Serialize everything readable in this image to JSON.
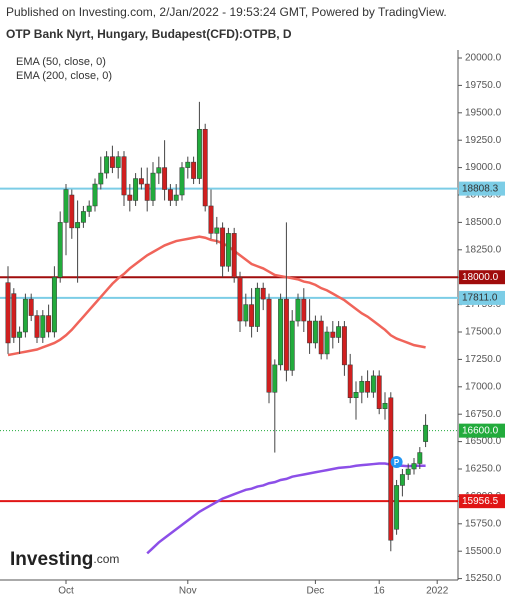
{
  "chart_data": {
    "type": "candlestick",
    "header": "Published on Investing.com, 2/Jan/2022 - 19:53:24 GMT, Powered by TradingView.",
    "title": "OTP Bank Nyrt, Hungary, Budapest(CFD):OTPB, D",
    "logo": "Investing",
    "logo_suffix": ".com",
    "marker_label": "P",
    "marker_index": 67,
    "up_color": "#22ab3c",
    "down_color": "#d11f1f",
    "categories": [
      null,
      null,
      null,
      null,
      null,
      null,
      null,
      null,
      null,
      null,
      null,
      null,
      null,
      null,
      null,
      null,
      null,
      null,
      null,
      null,
      null,
      null,
      null,
      null,
      null,
      null,
      null,
      null,
      null,
      null,
      null,
      null,
      null,
      null,
      null,
      null,
      null,
      null,
      null,
      null,
      null,
      null,
      null,
      null,
      null,
      null,
      null,
      null,
      null,
      null,
      null,
      null,
      null,
      null,
      null,
      null,
      null,
      null,
      null,
      null,
      null,
      null,
      null,
      null,
      null,
      null,
      null,
      null,
      null,
      null,
      null,
      null,
      null
    ],
    "open": [
      17950,
      17850,
      17450,
      17500,
      17800,
      17650,
      17450,
      17650,
      17500,
      18000,
      18500,
      18750,
      18450,
      18500,
      18600,
      18650,
      18850,
      18950,
      19100,
      19000,
      19100,
      18750,
      18700,
      18900,
      18850,
      18700,
      18950,
      19000,
      18800,
      18700,
      18750,
      19000,
      19050,
      18900,
      19350,
      18650,
      18400,
      18450,
      18100,
      18400,
      18000,
      17600,
      17750,
      17550,
      17900,
      17800,
      16950,
      17200,
      17800,
      17150,
      17600,
      17800,
      17600,
      17400,
      17600,
      17300,
      17500,
      17450,
      17550,
      17200,
      16900,
      16950,
      17050,
      16950,
      17100,
      16800,
      16900,
      15700,
      16100,
      16200,
      16250,
      16300,
      16500
    ],
    "high": [
      18100,
      17900,
      17550,
      17850,
      17850,
      17700,
      17700,
      17750,
      18100,
      18600,
      18850,
      18800,
      18700,
      18650,
      18700,
      18900,
      19100,
      19150,
      19200,
      19150,
      19150,
      18850,
      18950,
      19000,
      19000,
      19050,
      19100,
      19250,
      18850,
      18850,
      19050,
      19100,
      19100,
      19600,
      19400,
      18800,
      18550,
      18500,
      18450,
      18450,
      18050,
      17850,
      17900,
      17950,
      17950,
      17850,
      17250,
      17850,
      18500,
      17700,
      17850,
      17900,
      17800,
      17650,
      17650,
      17550,
      17600,
      17600,
      17600,
      17300,
      17050,
      17100,
      17150,
      17150,
      17150,
      16950,
      16950,
      16150,
      16250,
      16300,
      16350,
      16450,
      16750
    ],
    "low": [
      17300,
      17400,
      17300,
      17450,
      17600,
      17400,
      17400,
      17450,
      17450,
      17950,
      18200,
      18350,
      17950,
      18450,
      18550,
      18600,
      18800,
      18900,
      18950,
      18900,
      18650,
      18600,
      18650,
      18800,
      18600,
      18650,
      18850,
      18700,
      18650,
      18650,
      18700,
      18900,
      18850,
      18850,
      18600,
      18350,
      18300,
      18000,
      18050,
      17950,
      17500,
      17550,
      17450,
      17500,
      17700,
      16850,
      16400,
      17150,
      17050,
      17100,
      17550,
      17500,
      17300,
      17350,
      17250,
      17250,
      17350,
      17400,
      17100,
      16850,
      16700,
      16850,
      16900,
      16900,
      16750,
      16700,
      15500,
      15650,
      16000,
      16150,
      16200,
      16250,
      16450
    ],
    "close": [
      17400,
      17450,
      17500,
      17800,
      17650,
      17450,
      17650,
      17500,
      18000,
      18500,
      18800,
      18450,
      18500,
      18600,
      18650,
      18850,
      18950,
      19100,
      19000,
      19100,
      18750,
      18700,
      18900,
      18850,
      18700,
      18950,
      19000,
      18800,
      18700,
      18750,
      19000,
      19050,
      18900,
      19350,
      18650,
      18400,
      18450,
      18100,
      18400,
      18000,
      17600,
      17750,
      17550,
      17900,
      17800,
      16950,
      17200,
      17800,
      17150,
      17600,
      17800,
      17600,
      17400,
      17600,
      17300,
      17500,
      17450,
      17550,
      17200,
      16900,
      16950,
      17050,
      16950,
      17100,
      16800,
      16850,
      15600,
      16100,
      16200,
      16250,
      16300,
      16400,
      16650
    ],
    "series": [
      {
        "name": "EMA (50, close, 0)",
        "color": "#f0645a",
        "values": [
          17290,
          17300,
          17310,
          17320,
          17330,
          17340,
          17360,
          17380,
          17400,
          17430,
          17470,
          17520,
          17580,
          17640,
          17700,
          17760,
          17820,
          17880,
          17940,
          17990,
          18030,
          18080,
          18120,
          18160,
          18200,
          18230,
          18260,
          18290,
          18310,
          18330,
          18340,
          18350,
          18360,
          18370,
          18360,
          18340,
          18330,
          18310,
          18280,
          18240,
          18200,
          18160,
          18120,
          18100,
          18080,
          18050,
          18020,
          18010,
          18000,
          17990,
          17980,
          17960,
          17950,
          17930,
          17900,
          17880,
          17850,
          17820,
          17790,
          17750,
          17710,
          17670,
          17640,
          17600,
          17560,
          17520,
          17470,
          17440,
          17420,
          17400,
          17380,
          17370,
          17360
        ]
      },
      {
        "name": "EMA (200, close, 0)",
        "color": "#8c4fe8",
        "values": [
          null,
          null,
          null,
          null,
          null,
          null,
          null,
          null,
          null,
          null,
          null,
          null,
          null,
          null,
          null,
          null,
          null,
          null,
          null,
          null,
          null,
          null,
          null,
          null,
          15480,
          15530,
          15580,
          15620,
          15660,
          15700,
          15740,
          15780,
          15820,
          15860,
          15890,
          15920,
          15950,
          15980,
          16000,
          16020,
          16040,
          16060,
          16070,
          16090,
          16100,
          16120,
          16130,
          16150,
          16160,
          16180,
          16190,
          16200,
          16210,
          16220,
          16230,
          16240,
          16250,
          16260,
          16265,
          16270,
          16280,
          16285,
          16290,
          16295,
          16300,
          16300,
          16290,
          16280,
          16280,
          16275,
          16280,
          16280,
          16280
        ]
      }
    ],
    "levels": [
      {
        "value": 18808.3,
        "label": "18808.3",
        "color": "#7ccde6",
        "text_color": "#333333",
        "style": "solid"
      },
      {
        "value": 18000,
        "label": "18000.0",
        "color": "#a00c0c",
        "text_color": "#ffffff",
        "style": "solid"
      },
      {
        "value": 17811,
        "label": "17811.0",
        "color": "#7ccde6",
        "text_color": "#333333",
        "style": "solid"
      },
      {
        "value": 16600,
        "label": "16600.0",
        "color": "#22ab3c",
        "text_color": "#ffffff",
        "style": "dotted"
      },
      {
        "value": 15956.5,
        "label": "15956.5",
        "color": "#e01515",
        "text_color": "#ffffff",
        "style": "solid"
      }
    ],
    "xticks": [
      {
        "value": 10,
        "label": "Oct"
      },
      {
        "value": 31,
        "label": "Nov"
      },
      {
        "value": 53,
        "label": "Dec"
      },
      {
        "value": 64,
        "label": "16"
      },
      {
        "value": 74,
        "label": "2022"
      }
    ],
    "ylim": [
      15250,
      20000
    ],
    "yticks": [
      {
        "value": 15250,
        "label": "15250.0"
      },
      {
        "value": 15500,
        "label": "15500.0"
      },
      {
        "value": 15750,
        "label": "15750.0"
      },
      {
        "value": 16000,
        "label": "16000.0"
      },
      {
        "value": 16250,
        "label": "16250.0"
      },
      {
        "value": 16500,
        "label": "16500.0"
      },
      {
        "value": 16750,
        "label": "16750.0"
      },
      {
        "value": 17000,
        "label": "17000.0"
      },
      {
        "value": 17250,
        "label": "17250.0"
      },
      {
        "value": 17500,
        "label": "17500.0"
      },
      {
        "value": 17750,
        "label": "17750.0"
      },
      {
        "value": 18000,
        "label": "18000.0"
      },
      {
        "value": 18250,
        "label": "18250.0"
      },
      {
        "value": 18500,
        "label": "18500.0"
      },
      {
        "value": 18750,
        "label": "18750.0"
      },
      {
        "value": 19000,
        "label": "19000.0"
      },
      {
        "value": 19250,
        "label": "19250.0"
      },
      {
        "value": 19500,
        "label": "19500.0"
      },
      {
        "value": 19750,
        "label": "19750.0"
      },
      {
        "value": 20000,
        "label": "20000.0"
      }
    ]
  }
}
